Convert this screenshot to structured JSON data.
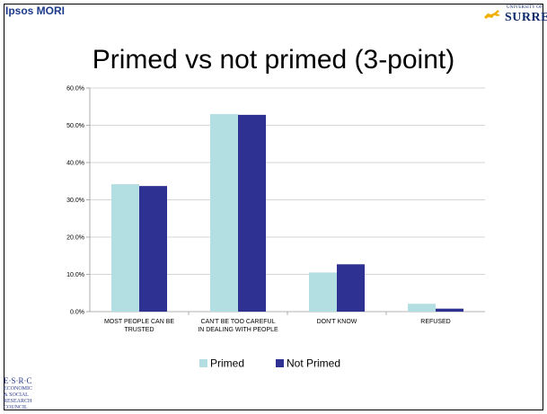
{
  "header": {
    "left_brand": "Ipsos MORI",
    "right_brand_small": "UNIVERSITY OF",
    "right_brand_big": "SURREY"
  },
  "slide": {
    "title": "Primed vs not primed (3-point)"
  },
  "footer_logo": {
    "lines": [
      "E·S·R·C",
      "ECONOMIC",
      "& SOCIAL",
      "RESEARCH",
      "COUNCIL"
    ]
  },
  "colors": {
    "primed": "#b3dfe3",
    "not_primed": "#2e3192",
    "grid": "#c8c8c8",
    "axis": "#9a9a9a"
  },
  "chart_data": {
    "type": "bar",
    "categories": [
      [
        "MOST PEOPLE CAN BE",
        "TRUSTED"
      ],
      [
        "CAN'T BE TOO CAREFUL",
        "IN DEALING WITH PEOPLE"
      ],
      [
        "DON'T KNOW"
      ],
      [
        "REFUSED"
      ]
    ],
    "series": [
      {
        "name": "Primed",
        "values": [
          34.2,
          53.0,
          10.5,
          2.1
        ]
      },
      {
        "name": "Not Primed",
        "values": [
          33.7,
          52.8,
          12.7,
          0.8
        ]
      }
    ],
    "y_ticks": [
      "0.0%",
      "10.0%",
      "20.0%",
      "30.0%",
      "40.0%",
      "50.0%",
      "60.0%"
    ],
    "ylim": [
      0,
      60
    ],
    "grid": true,
    "legend": "bottom"
  }
}
